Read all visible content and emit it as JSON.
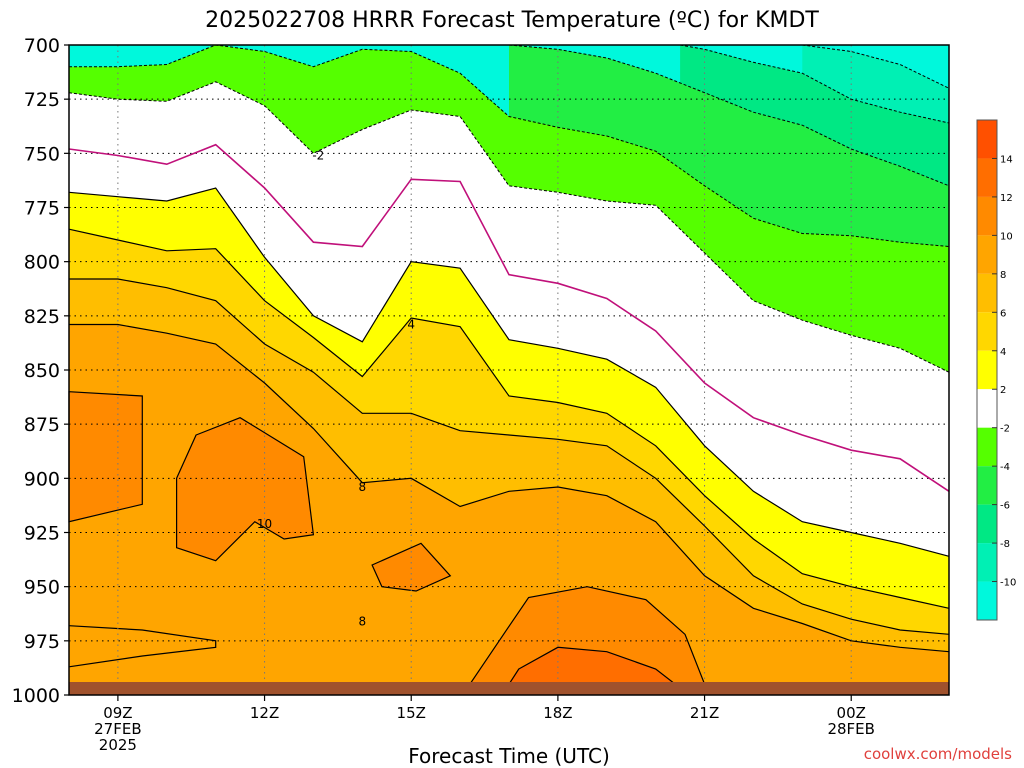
{
  "chart_data": {
    "type": "heatmap",
    "title": "2025022708 HRRR Forecast Temperature (ºC) for KMDT",
    "xlabel": "Forecast Time (UTC)",
    "credit": "coolwx.com/models",
    "y_axis": {
      "ticks": [
        700,
        725,
        750,
        775,
        800,
        825,
        850,
        875,
        900,
        925,
        950,
        975,
        1000
      ],
      "range": [
        700,
        1000
      ],
      "inverted": true
    },
    "x_axis": {
      "range_hours": [
        8,
        26
      ],
      "ticks": [
        {
          "hour": 9,
          "lines": [
            "09Z",
            "27FEB",
            "2025"
          ]
        },
        {
          "hour": 12,
          "lines": [
            "12Z"
          ]
        },
        {
          "hour": 15,
          "lines": [
            "15Z"
          ]
        },
        {
          "hour": 18,
          "lines": [
            "18Z"
          ]
        },
        {
          "hour": 21,
          "lines": [
            "21Z"
          ]
        },
        {
          "hour": 24,
          "lines": [
            "00Z",
            "28FEB"
          ]
        }
      ]
    },
    "grid": true,
    "colorbar": {
      "ticks": [
        "14",
        "12",
        "10",
        "8",
        "6",
        "4",
        "2",
        "-2",
        "-4",
        "-6",
        "-8",
        "-10"
      ],
      "colors": [
        "#ff5000",
        "#ff6e00",
        "#ff8a00",
        "#ffa500",
        "#ffbe00",
        "#ffd700",
        "#ffff00",
        "#ffffff",
        "#55ff00",
        "#22ee44",
        "#00e884",
        "#00f0b4",
        "#00f8dc"
      ]
    },
    "contour_labels": [
      {
        "text": "-2",
        "hour": 13.1,
        "pressure": 751
      },
      {
        "text": "4",
        "hour": 15.0,
        "pressure": 829
      },
      {
        "text": "8",
        "hour": 14.0,
        "pressure": 904
      },
      {
        "text": "10",
        "hour": 12.0,
        "pressure": 921
      },
      {
        "text": "8",
        "hour": 14.0,
        "pressure": 966
      }
    ],
    "isotherms": {
      "x_hours": [
        8,
        9,
        10,
        11,
        12,
        13,
        14,
        15,
        16,
        17,
        18,
        19,
        20,
        21,
        22,
        23,
        24,
        25,
        26
      ],
      "contours": [
        {
          "value": -10,
          "kind": "dash",
          "hours": [
            23.0,
            24.0,
            25.0,
            26.0
          ],
          "pressures": [
            700,
            703,
            709,
            720
          ]
        },
        {
          "value": -8,
          "kind": "dash",
          "hours": [
            20.5,
            21.0,
            22.0,
            23.0,
            24.0,
            25.0,
            26.0
          ],
          "pressures": [
            700,
            702,
            708,
            713,
            725,
            731,
            736
          ]
        },
        {
          "value": -6,
          "kind": "dash",
          "hours": [
            17.0,
            18.0,
            19.0,
            20.0,
            21.0,
            22.0,
            23.0,
            24.0,
            25.0,
            26.0
          ],
          "pressures": [
            700,
            702,
            706,
            713,
            722,
            731,
            737,
            748,
            756,
            765
          ]
        },
        {
          "value": -4,
          "kind": "dash",
          "hours": [
            8,
            9,
            10,
            11,
            12,
            13,
            14,
            15,
            16,
            17,
            18,
            19,
            20,
            21,
            22,
            23,
            24,
            25,
            26
          ],
          "pressures": [
            710,
            710,
            709,
            700,
            703,
            710,
            702,
            703,
            713,
            733,
            738,
            742,
            749,
            765,
            780,
            787,
            788,
            791,
            793
          ]
        },
        {
          "value": -2,
          "kind": "dash",
          "hours": [
            8,
            9,
            10,
            11,
            12,
            13,
            14,
            15,
            16,
            17,
            18,
            19,
            20,
            21,
            22,
            23,
            24,
            25,
            26
          ],
          "pressures": [
            722,
            725,
            726,
            717,
            728,
            750,
            739,
            730,
            733,
            765,
            768,
            772,
            774,
            796,
            818,
            827,
            834,
            840,
            851
          ]
        },
        {
          "value": 0,
          "kind": "zero",
          "hours": [
            8,
            9,
            10,
            11,
            12,
            13,
            14,
            15,
            16,
            17,
            18,
            19,
            20,
            21,
            22,
            23,
            24,
            25,
            26
          ],
          "pressures": [
            748,
            751,
            755,
            746,
            766,
            791,
            793,
            762,
            763,
            806,
            810,
            817,
            832,
            856,
            872,
            880,
            887,
            891,
            906
          ]
        },
        {
          "value": 2,
          "kind": "solid",
          "hours": [
            8,
            9,
            10,
            11,
            12,
            13,
            14,
            15,
            16,
            17,
            18,
            19,
            20,
            21,
            22,
            23,
            24,
            25,
            26
          ],
          "pressures": [
            768,
            770,
            772,
            766,
            798,
            825,
            837,
            800,
            803,
            836,
            840,
            845,
            858,
            885,
            906,
            920,
            925,
            930,
            936
          ]
        },
        {
          "value": 4,
          "kind": "solid",
          "hours": [
            8,
            9,
            10,
            11,
            12,
            13,
            14,
            15,
            16,
            17,
            18,
            19,
            20,
            21,
            22,
            23,
            24,
            25,
            26
          ],
          "pressures": [
            785,
            790,
            795,
            794,
            818,
            835,
            853,
            826,
            830,
            862,
            865,
            870,
            885,
            908,
            928,
            944,
            950,
            955,
            960
          ]
        },
        {
          "value": 6,
          "kind": "solid",
          "hours": [
            8,
            9,
            10,
            11,
            12,
            13,
            14,
            15,
            16,
            17,
            18,
            19,
            20,
            21,
            22,
            23,
            24,
            25,
            26
          ],
          "pressures": [
            808,
            808,
            812,
            818,
            838,
            851,
            870,
            870,
            878,
            880,
            882,
            885,
            900,
            922,
            945,
            958,
            965,
            970,
            972
          ]
        },
        {
          "value": 8,
          "kind": "solid",
          "hours": [
            8,
            9,
            10,
            11,
            12,
            13,
            14,
            15,
            16,
            17,
            18,
            19,
            20,
            21,
            22,
            23,
            24,
            25,
            26
          ],
          "pressures": [
            829,
            829,
            833,
            838,
            856,
            877,
            902,
            900,
            913,
            906,
            904,
            908,
            920,
            945,
            960,
            967,
            975,
            978,
            980
          ]
        }
      ]
    }
  }
}
